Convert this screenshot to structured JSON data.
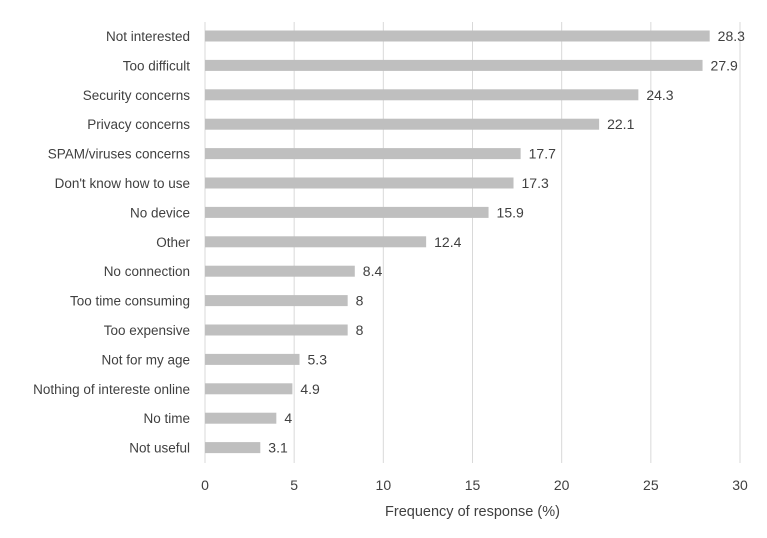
{
  "chart_data": {
    "type": "bar",
    "orientation": "horizontal",
    "categories": [
      "Not interested",
      "Too difficult",
      "Security concerns",
      "Privacy concerns",
      "SPAM/viruses concerns",
      "Don't know how to use",
      "No device",
      "Other",
      "No connection",
      "Too time consuming",
      "Too expensive",
      "Not for my age",
      "Nothing of intereste online",
      "No time",
      "Not useful"
    ],
    "values": [
      28.3,
      27.9,
      24.3,
      22.1,
      17.7,
      17.3,
      15.9,
      12.4,
      8.4,
      8,
      8,
      5.3,
      4.9,
      4,
      3.1
    ],
    "value_labels": [
      "28.3",
      "27.9",
      "24.3",
      "22.1",
      "17.7",
      "17.3",
      "15.9",
      "12.4",
      "8.4",
      "8",
      "8",
      "5.3",
      "4.9",
      "4",
      "3.1"
    ],
    "xlabel": "Frequency of response (%)",
    "ylabel": "",
    "xlim": [
      0,
      30
    ],
    "xticks": [
      0,
      5,
      10,
      15,
      20,
      25,
      30
    ],
    "xtick_labels": [
      "0",
      "5",
      "10",
      "15",
      "20",
      "25",
      "30"
    ],
    "grid": "vertical",
    "legend": "none",
    "colors": {
      "bar": "#bfbfbf",
      "grid": "#d9d9d9",
      "text": "#404040"
    }
  }
}
